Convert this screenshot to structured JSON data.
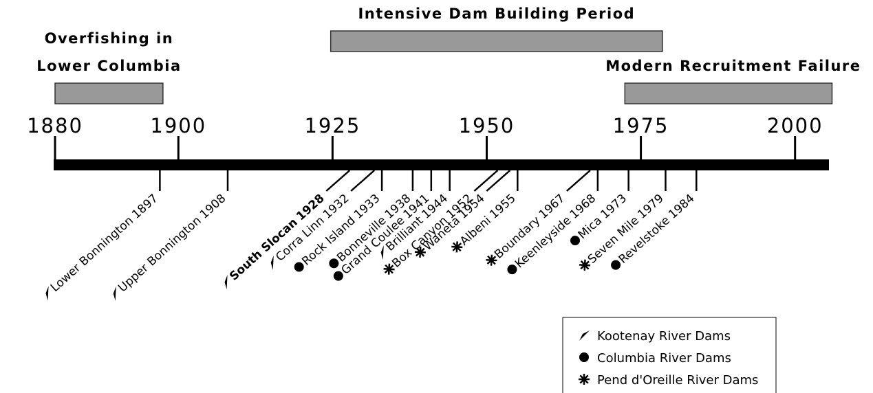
{
  "title": null,
  "periods": [
    {
      "label": [
        "Overfishing in",
        "Lower Columbia"
      ],
      "start": 1880,
      "end": 1897.5
    },
    {
      "label": [
        "Intensive Dam Building Period"
      ],
      "start": 1924.7,
      "end": 1978.5
    },
    {
      "label": [
        "Modern Recruitment Failure"
      ],
      "start": 1972.4,
      "end": 2006
    }
  ],
  "axis": {
    "range": [
      1880,
      2005.5
    ],
    "years": [
      1880,
      1900,
      1925,
      1950,
      1975,
      2000
    ]
  },
  "rivers": [
    {
      "label": "Kootenay River Dams",
      "dams": [
        {
          "name": "Lower Bonnington",
          "year": 1897
        },
        {
          "name": "Upper Bonnington",
          "year": 1908
        },
        {
          "name": "South Slocan",
          "year": 1928
        },
        {
          "name": "Corra Linn",
          "year": 1932
        },
        {
          "name": "Brilliant",
          "year": 1944
        }
      ]
    },
    {
      "label": "Columbia River Dams",
      "dams": [
        {
          "name": "Rock Island",
          "year": 1933
        },
        {
          "name": "Bonneville",
          "year": 1938
        },
        {
          "name": "Grand Coulee",
          "year": 1941
        },
        {
          "name": "Keenleyside",
          "year": 1968
        },
        {
          "name": "Mica",
          "year": 1973
        },
        {
          "name": "Revelstoke",
          "year": 1984
        }
      ]
    },
    {
      "label": "Pend d'Oreille River Dams",
      "dams": [
        {
          "name": "Box Canyon",
          "year": 1952
        },
        {
          "name": "Waneta",
          "year": 1954
        },
        {
          "name": "Albeni",
          "year": 1955
        },
        {
          "name": "Boundary",
          "year": 1967
        },
        {
          "name": "Seven Mile",
          "year": 1979
        }
      ]
    }
  ]
}
